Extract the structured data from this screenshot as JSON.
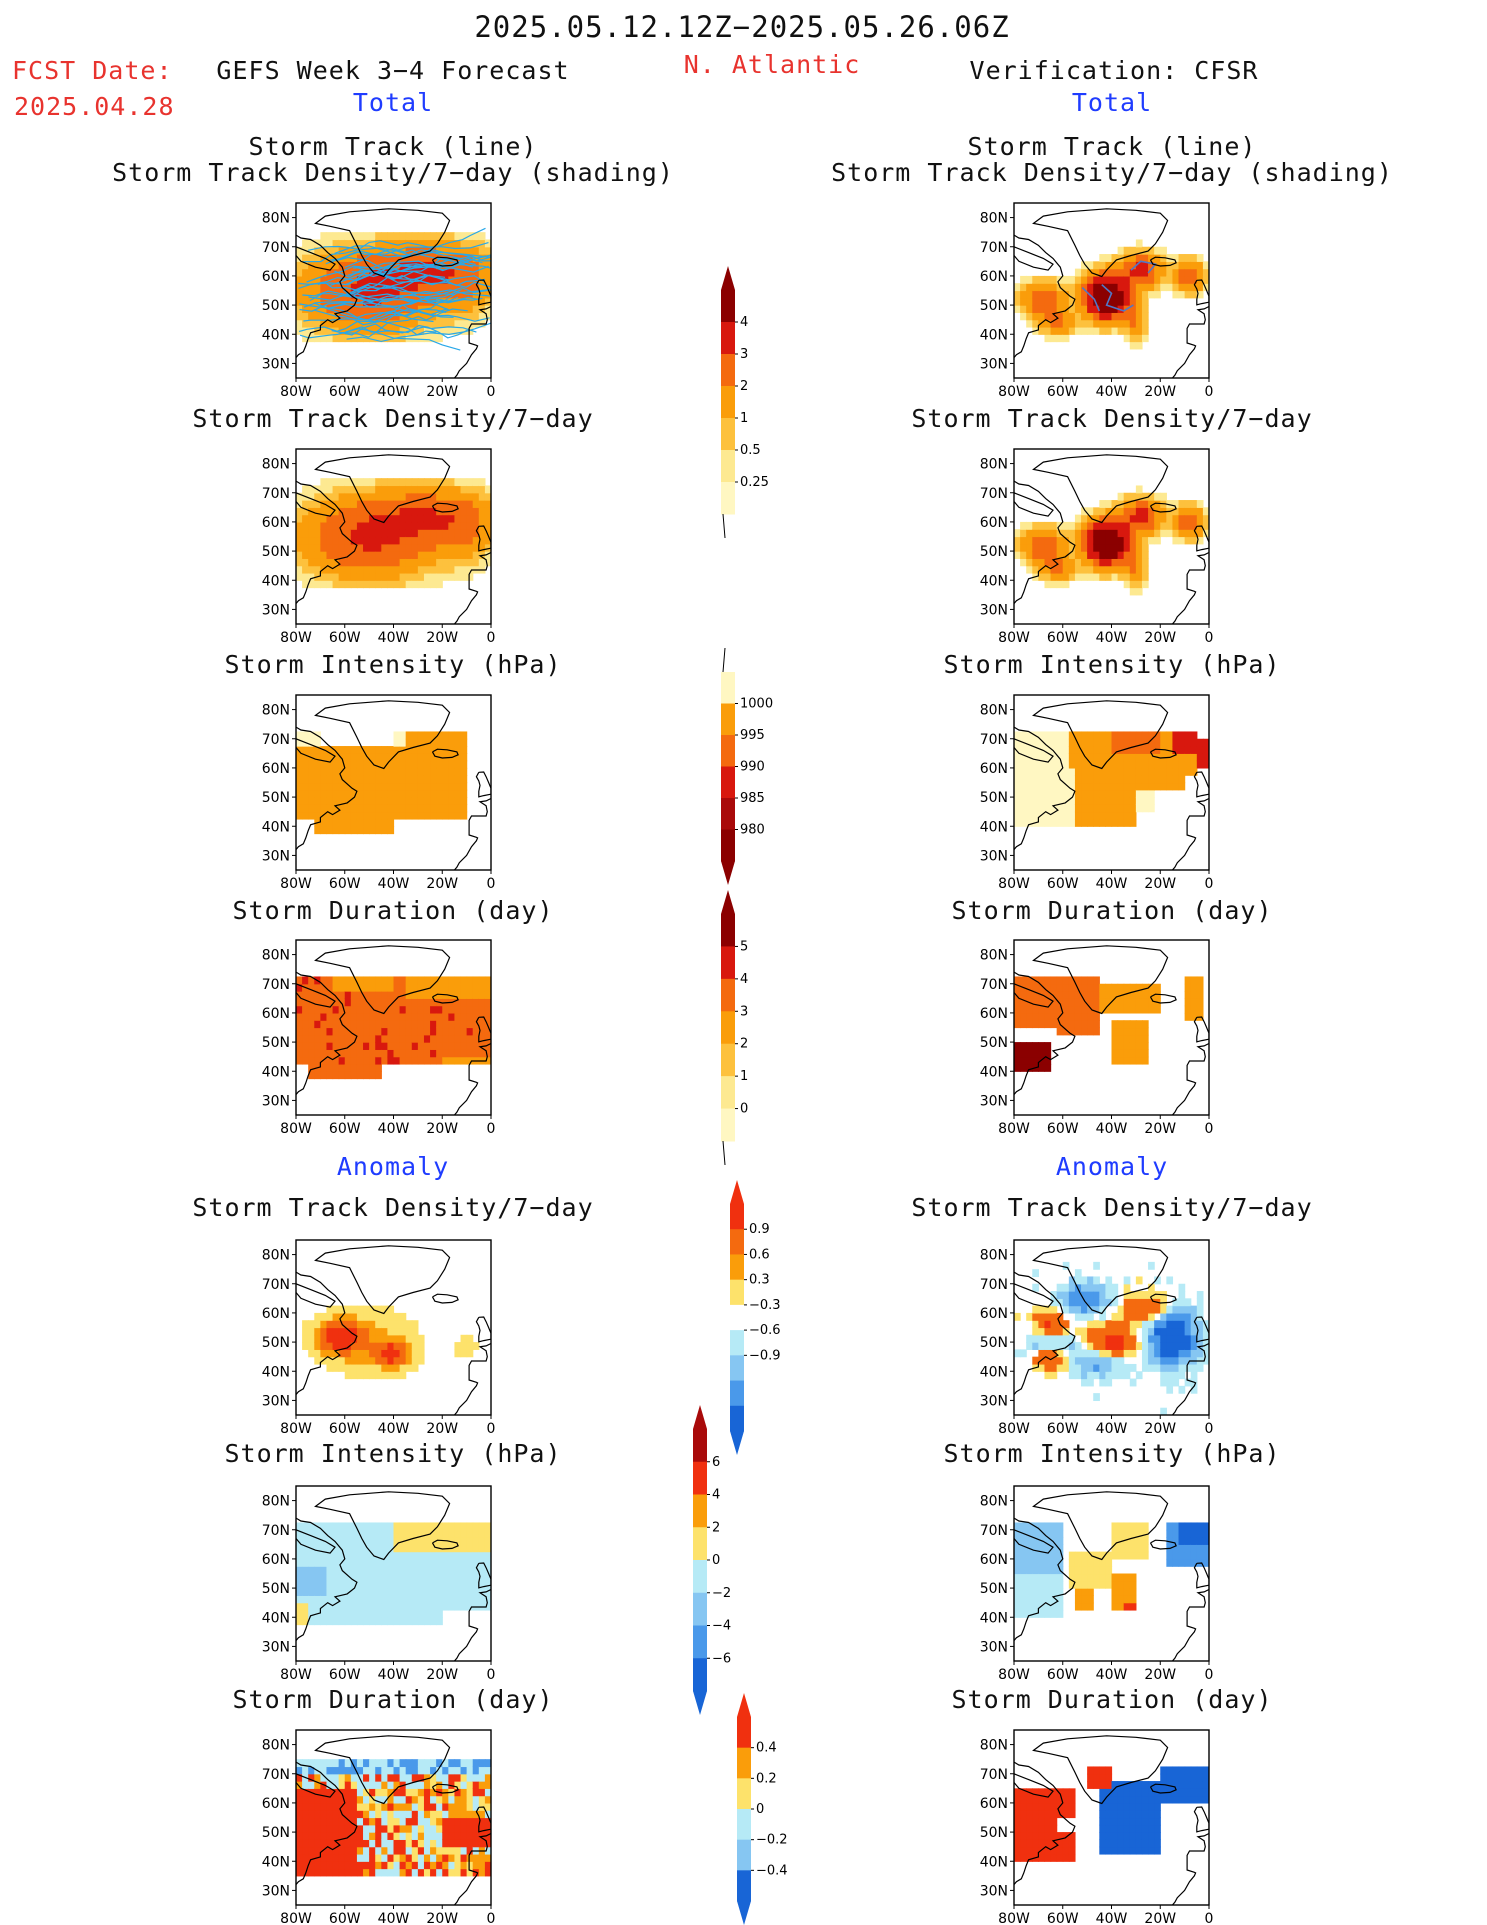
{
  "header": {
    "period": "2025.05.12.12Z−2025.05.26.06Z",
    "fcst_label": "FCST Date:",
    "fcst_date": "2025.04.28",
    "left_title": "GEFS Week 3−4 Forecast",
    "region": "N. Atlantic",
    "right_title": "Verification: CFSR",
    "total_label": "Total",
    "anomaly_label": "Anomaly"
  },
  "panel_titles": {
    "track_line": "Storm Track (line)",
    "track_shading": "Storm Track Density/7−day (shading)",
    "density": "Storm Track Density/7−day",
    "intensity": "Storm Intensity (hPa)",
    "duration": "Storm Duration (day)"
  },
  "axes": {
    "lat_ticks": [
      "80N",
      "70N",
      "60N",
      "50N",
      "40N",
      "30N"
    ],
    "lon_ticks": [
      "80W",
      "60W",
      "40W",
      "20W",
      "0"
    ]
  },
  "colorbars": [
    {
      "name": "density-total",
      "labels": [
        "4",
        "3",
        "2",
        "1",
        "0.5",
        "0.25"
      ],
      "colors": [
        "#8b0000",
        "#d8180e",
        "#f46a0f",
        "#fa9d0a",
        "#fdc13d",
        "#fde991",
        "#fff7c2"
      ],
      "arrow_top": true,
      "arrow_bottom_line": true
    },
    {
      "name": "intensity-total",
      "labels": [
        "1000",
        "995",
        "990",
        "985",
        "980"
      ],
      "colors": [
        "#fff7c2",
        "#fa9d0a",
        "#f46a0f",
        "#d8180e",
        "#a90a0a",
        "#8b0000"
      ],
      "arrow_top_line": true,
      "arrow_bottom": true
    },
    {
      "name": "duration-total",
      "labels": [
        "5",
        "4",
        "3",
        "2",
        "1",
        "0"
      ],
      "colors": [
        "#8b0000",
        "#d8180e",
        "#f46a0f",
        "#fa9d0a",
        "#fdc13d",
        "#fde991",
        "#fff7c2"
      ],
      "arrow_top": true,
      "arrow_bottom_line": true
    },
    {
      "name": "density-anom",
      "labels": [
        "0.9",
        "0.6",
        "0.3",
        "−0.3",
        "−0.6",
        "−0.9"
      ],
      "colors": [
        "#f0300f",
        "#f46a0f",
        "#fa9d0a",
        "#fde26b",
        "#ffffff",
        "#b6eaf6",
        "#86c6f2",
        "#4a99ea",
        "#1865d6"
      ],
      "arrow_top": true,
      "arrow_bottom": true
    },
    {
      "name": "intensity-anom",
      "labels": [
        "6",
        "4",
        "2",
        "0",
        "−2",
        "−4",
        "−6"
      ],
      "colors": [
        "#a90a0a",
        "#f0300f",
        "#fa9d0a",
        "#fde26b",
        "#b6eaf6",
        "#86c6f2",
        "#4a99ea",
        "#1865d6"
      ],
      "arrow_top": true,
      "arrow_bottom": true
    },
    {
      "name": "duration-anom",
      "labels": [
        "0.4",
        "0.2",
        "0",
        "−0.2",
        "−0.4"
      ],
      "colors": [
        "#f0300f",
        "#fa9d0a",
        "#fde26b",
        "#b6eaf6",
        "#86c6f2",
        "#1865d6"
      ],
      "arrow_top": true,
      "arrow_bottom": true
    }
  ]
}
